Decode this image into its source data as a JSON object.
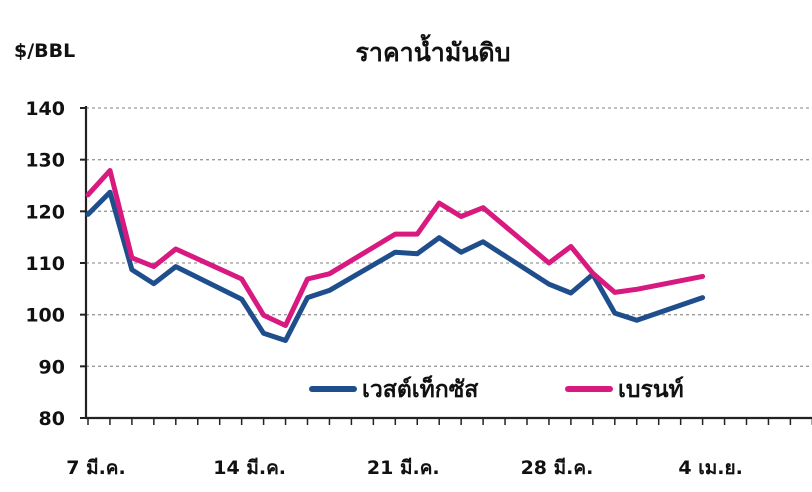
{
  "chart_data": {
    "type": "line",
    "title": "ราคาน้ำมันดิบ",
    "ylabel": "$/BBL",
    "xlabel": "",
    "ylim": [
      80,
      140
    ],
    "yticks": [
      80,
      90,
      100,
      110,
      120,
      130,
      140
    ],
    "grid": true,
    "legend_position": "bottom-right",
    "x_tick_labels": [
      {
        "day": 0,
        "label": "7 มี.ค."
      },
      {
        "day": 7,
        "label": "14 มี.ค."
      },
      {
        "day": 14,
        "label": "21 มี.ค."
      },
      {
        "day": 21,
        "label": "28 มี.ค."
      },
      {
        "day": 28,
        "label": "4 เม.ย."
      }
    ],
    "x_max_day": 33,
    "series": [
      {
        "name": "เวสต์เท็กซัส",
        "color": "#1f4e8c",
        "x": [
          0,
          1,
          2,
          3,
          4,
          7,
          8,
          9,
          10,
          11,
          14,
          15,
          16,
          17,
          18,
          21,
          22,
          23,
          24,
          25,
          28
        ],
        "values": [
          119.4,
          123.7,
          108.7,
          106.0,
          109.3,
          103.0,
          96.4,
          95.0,
          103.3,
          104.7,
          112.1,
          111.8,
          114.9,
          112.1,
          114.1,
          105.9,
          104.2,
          107.8,
          100.3,
          98.9,
          103.3
        ]
      },
      {
        "name": "เบรนท์",
        "color": "#d8197f",
        "x": [
          0,
          1,
          2,
          3,
          4,
          7,
          8,
          9,
          10,
          11,
          14,
          15,
          16,
          17,
          18,
          21,
          22,
          23,
          24,
          25,
          28
        ],
        "values": [
          123.2,
          127.9,
          111.0,
          109.3,
          112.7,
          106.9,
          99.9,
          97.9,
          106.9,
          107.9,
          115.6,
          115.6,
          121.6,
          119.0,
          120.7,
          110.0,
          113.2,
          108.0,
          104.3,
          104.9,
          107.4
        ]
      }
    ]
  }
}
